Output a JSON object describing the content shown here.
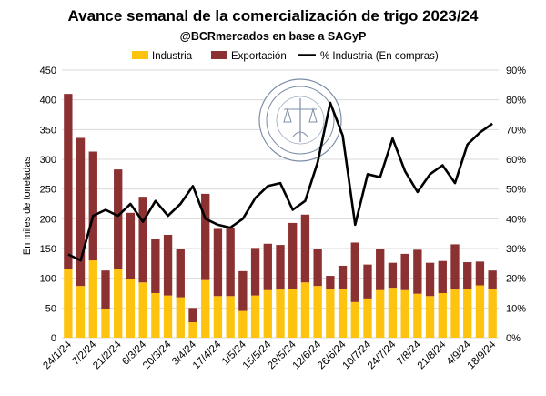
{
  "chart_data": {
    "type": "bar",
    "stacked": true,
    "title": "Avance semanal de la comercialización de trigo 2023/24",
    "subtitle": "@BCRmercados en base a SAGyP",
    "ylabel": "En miles de toneladas",
    "ylim": [
      0,
      450
    ],
    "yticks": [
      0,
      50,
      100,
      150,
      200,
      250,
      300,
      350,
      400,
      450
    ],
    "y2lim": [
      0,
      90
    ],
    "y2ticks": [
      "0%",
      "10%",
      "20%",
      "30%",
      "40%",
      "50%",
      "60%",
      "70%",
      "80%",
      "90%"
    ],
    "y2ticks_values": [
      0,
      10,
      20,
      30,
      40,
      50,
      60,
      70,
      80,
      90
    ],
    "grid": true,
    "legend_position": "top",
    "colors": {
      "industria": "#fdc30f",
      "exportacion": "#8c3131",
      "line": "#000000"
    },
    "categories": [
      "24/1/24",
      "31/1/24",
      "7/2/24",
      "14/2/24",
      "21/2/24",
      "28/2/24",
      "6/3/24",
      "13/3/24",
      "20/3/24",
      "27/3/24",
      "3/4/24",
      "10/4/24",
      "17/4/24",
      "24/4/24",
      "1/5/24",
      "8/5/24",
      "15/5/24",
      "22/5/24",
      "29/5/24",
      "5/6/24",
      "12/6/24",
      "19/6/24",
      "26/6/24",
      "3/7/24",
      "10/7/24",
      "17/7/24",
      "24/7/24",
      "31/7/24",
      "7/8/24",
      "14/8/24",
      "21/8/24",
      "28/8/24",
      "4/9/24",
      "11/9/24",
      "18/9/24"
    ],
    "xtick_labels": [
      "24/1/24",
      "7/2/24",
      "21/2/24",
      "6/3/24",
      "20/3/24",
      "3/4/24",
      "17/4/24",
      "1/5/24",
      "15/5/24",
      "29/5/24",
      "12/6/24",
      "26/6/24",
      "10/7/24",
      "24/7/24",
      "7/8/24",
      "21/8/24",
      "4/9/24",
      "18/9/24"
    ],
    "series": [
      {
        "name": "Industria",
        "type": "bar",
        "axis": "left",
        "values": [
          115,
          87,
          130,
          49,
          115,
          98,
          93,
          75,
          71,
          68,
          26,
          97,
          70,
          70,
          45,
          71,
          80,
          81,
          82,
          93,
          87,
          82,
          82,
          60,
          66,
          80,
          84,
          80,
          74,
          70,
          75,
          81,
          82,
          88,
          82
        ]
      },
      {
        "name": "Exportación",
        "type": "bar",
        "axis": "left",
        "values": [
          295,
          249,
          183,
          64,
          168,
          112,
          144,
          91,
          102,
          81,
          24,
          145,
          113,
          115,
          67,
          80,
          78,
          75,
          111,
          114,
          62,
          22,
          39,
          100,
          57,
          70,
          42,
          61,
          74,
          56,
          54,
          76,
          45,
          40,
          31
        ]
      },
      {
        "name": "% Industria (En compras)",
        "type": "line",
        "axis": "right",
        "values": [
          28,
          26,
          41,
          43,
          41,
          45,
          39,
          46,
          41,
          45,
          51,
          40,
          38,
          37,
          40,
          47,
          51,
          52,
          43,
          46,
          59,
          79,
          68,
          38,
          55,
          54,
          67,
          56,
          49,
          55,
          58,
          52,
          65,
          69,
          72
        ]
      }
    ]
  }
}
